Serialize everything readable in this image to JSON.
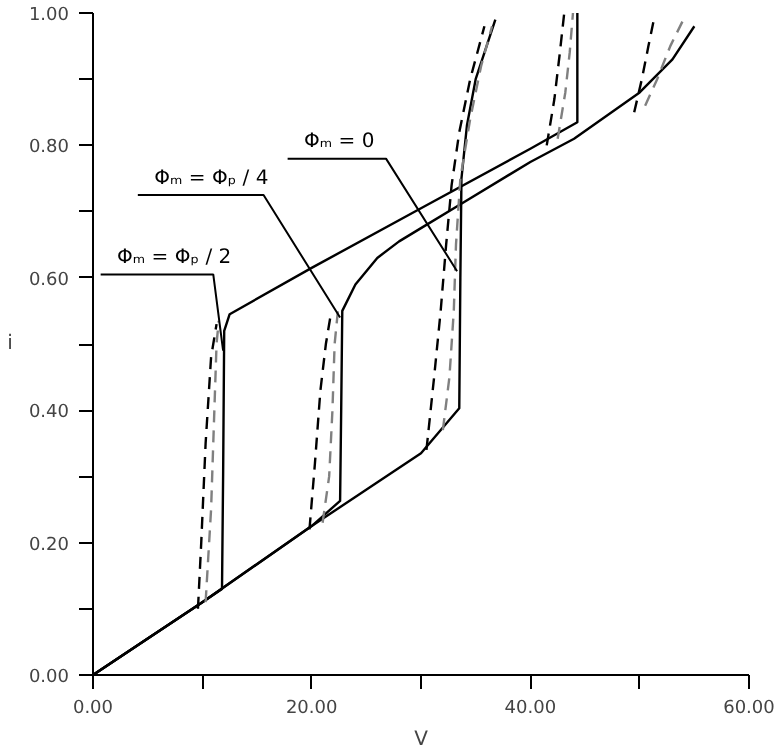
{
  "chart_data": {
    "type": "line",
    "xlabel": "V",
    "ylabel": "i",
    "xlim": [
      0,
      60
    ],
    "ylim": [
      0,
      1
    ],
    "xticks": [
      {
        "value": 0,
        "label": "0.00"
      },
      {
        "value": 10,
        "label": null
      },
      {
        "value": 20,
        "label": "20.00"
      },
      {
        "value": 30,
        "label": null
      },
      {
        "value": 40,
        "label": "40.00"
      },
      {
        "value": 50,
        "label": null
      },
      {
        "value": 60,
        "label": "60.00"
      }
    ],
    "yticks": [
      {
        "value": 0,
        "label": "0.00"
      },
      {
        "value": 0.1,
        "label": null
      },
      {
        "value": 0.2,
        "label": "0.20"
      },
      {
        "value": 0.3,
        "label": null
      },
      {
        "value": 0.4,
        "label": "0.40"
      },
      {
        "value": 0.5,
        "label": null
      },
      {
        "value": 0.6,
        "label": "0.60"
      },
      {
        "value": 0.7,
        "label": null
      },
      {
        "value": 0.8,
        "label": "0.80"
      },
      {
        "value": 0.9,
        "label": null
      },
      {
        "value": 1.0,
        "label": "1.00"
      }
    ],
    "grid": false,
    "marker": "none",
    "series": [
      {
        "color": "#000000",
        "line_style": "solid",
        "x": [
          0,
          5,
          10,
          11.8,
          11.9,
          12.0,
          12.5,
          20,
          30,
          40,
          44.3,
          44.3
        ],
        "values": [
          0,
          0.055,
          0.11,
          0.13,
          0.3,
          0.52,
          0.545,
          0.615,
          0.705,
          0.795,
          0.835,
          1.0
        ]
      },
      {
        "color": "#000000",
        "line_style": "solid",
        "x": [
          0,
          10,
          20,
          22.6,
          22.7,
          22.8,
          24,
          26,
          28,
          30,
          33.5,
          40,
          44,
          50,
          53,
          55
        ],
        "values": [
          0,
          0.11,
          0.225,
          0.263,
          0.4,
          0.55,
          0.59,
          0.63,
          0.655,
          0.675,
          0.71,
          0.775,
          0.81,
          0.88,
          0.93,
          0.98
        ]
      },
      {
        "color": "#000000",
        "line_style": "solid",
        "x": [
          0,
          10,
          20,
          30,
          33.5,
          33.6,
          33.7,
          34.2,
          35,
          36,
          36.8
        ],
        "values": [
          0,
          0.11,
          0.225,
          0.335,
          0.403,
          0.6,
          0.75,
          0.83,
          0.9,
          0.95,
          0.99
        ]
      },
      {
        "color": "#808080",
        "line_style": "dashed",
        "x": [
          10.3,
          10.8,
          11.1,
          11.3,
          11.5
        ],
        "values": [
          0.11,
          0.25,
          0.4,
          0.5,
          0.535
        ]
      },
      {
        "color": "#000000",
        "line_style": "dashed",
        "x": [
          9.6,
          9.9,
          10.3,
          10.8,
          11.3
        ],
        "values": [
          0.1,
          0.2,
          0.35,
          0.48,
          0.53
        ]
      },
      {
        "color": "#808080",
        "line_style": "dashed",
        "x": [
          21,
          21.6,
          21.9,
          22.1,
          22.4
        ],
        "values": [
          0.23,
          0.3,
          0.4,
          0.5,
          0.55
        ]
      },
      {
        "color": "#000000",
        "line_style": "dashed",
        "x": [
          19.8,
          20.3,
          20.8,
          21.3,
          21.8
        ],
        "values": [
          0.22,
          0.32,
          0.43,
          0.5,
          0.55
        ]
      },
      {
        "color": "#808080",
        "line_style": "dashed",
        "x": [
          32.0,
          32.6,
          33.0,
          33.2,
          33.6,
          34.5,
          35.5,
          36.5
        ],
        "values": [
          0.37,
          0.45,
          0.55,
          0.65,
          0.75,
          0.84,
          0.92,
          0.98
        ]
      },
      {
        "color": "#000000",
        "line_style": "dashed",
        "x": [
          30.5,
          31.2,
          31.8,
          32.3,
          32.8,
          33.5,
          34.5,
          35.8
        ],
        "values": [
          0.34,
          0.45,
          0.55,
          0.65,
          0.74,
          0.82,
          0.9,
          0.98
        ]
      },
      {
        "color": "#808080",
        "line_style": "dashed",
        "x": [
          42.5,
          43.2,
          43.6,
          43.9
        ],
        "values": [
          0.81,
          0.88,
          0.94,
          1.0
        ]
      },
      {
        "color": "#000000",
        "line_style": "dashed",
        "x": [
          41.5,
          42.2,
          42.7,
          43.1
        ],
        "values": [
          0.8,
          0.87,
          0.94,
          1.0
        ]
      },
      {
        "color": "#808080",
        "line_style": "dashed",
        "x": [
          50.5,
          51.6,
          52.8,
          54.0
        ],
        "values": [
          0.86,
          0.9,
          0.95,
          0.99
        ]
      },
      {
        "color": "#000000",
        "line_style": "dashed",
        "x": [
          49.5,
          50.2,
          50.8,
          51.3
        ],
        "values": [
          0.85,
          0.9,
          0.95,
          0.99
        ]
      }
    ],
    "annotations": [
      {
        "text": "Φₘ = 0",
        "x": 33.3,
        "y": 0.61
      },
      {
        "text": "Φₘ = Φₚ / 4",
        "x": 22.6,
        "y": 0.54
      },
      {
        "text": "Φₘ = Φₚ / 2",
        "x": 11.9,
        "y": 0.49
      }
    ]
  }
}
